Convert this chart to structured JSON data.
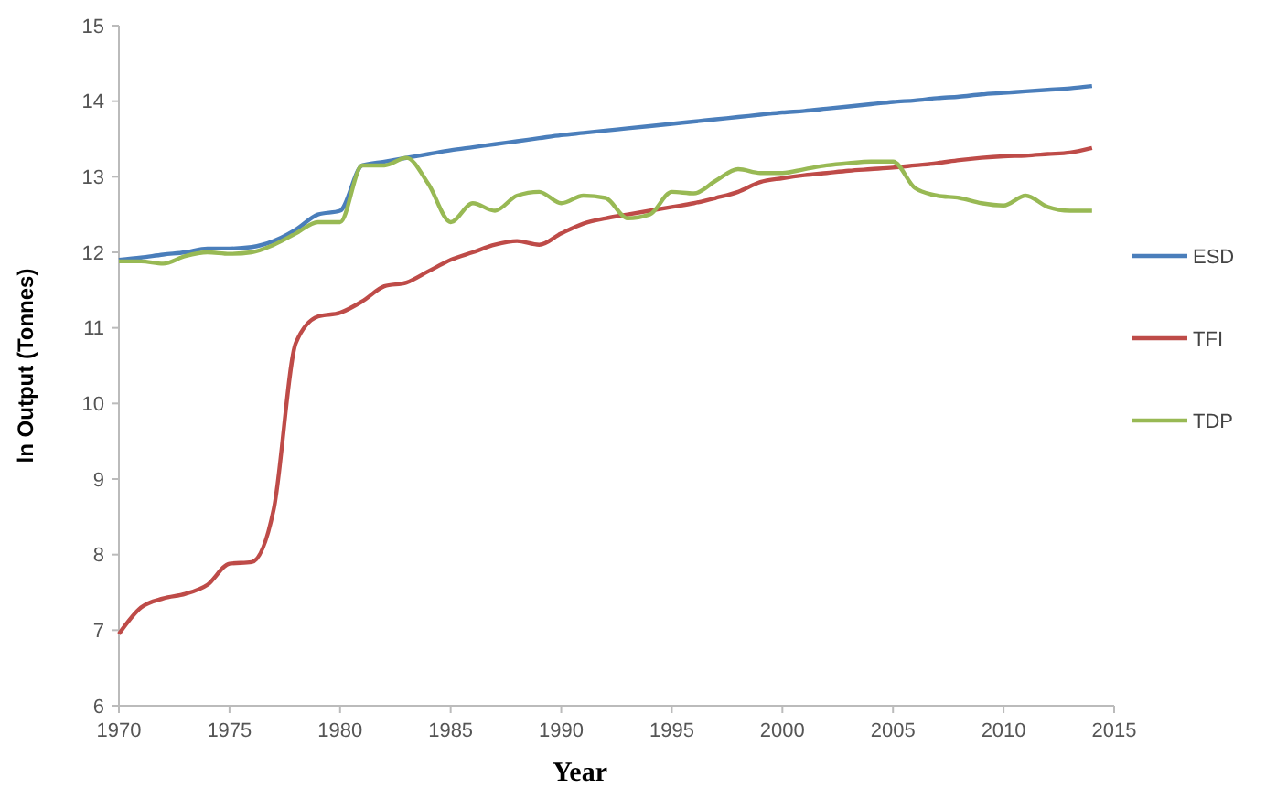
{
  "chart_data": {
    "type": "line",
    "xlabel": "Year",
    "ylabel": "ln Output (Tonnes)",
    "x": [
      1970,
      1971,
      1972,
      1973,
      1974,
      1975,
      1976,
      1977,
      1978,
      1979,
      1980,
      1981,
      1982,
      1983,
      1984,
      1985,
      1986,
      1987,
      1988,
      1989,
      1990,
      1991,
      1992,
      1993,
      1994,
      1995,
      1996,
      1997,
      1998,
      1999,
      2000,
      2001,
      2002,
      2003,
      2004,
      2005,
      2006,
      2007,
      2008,
      2009,
      2010,
      2011,
      2012,
      2013,
      2014
    ],
    "series": [
      {
        "name": "ESD",
        "color": "#4a7ebb",
        "values": [
          11.9,
          11.93,
          11.97,
          12.0,
          12.05,
          12.05,
          12.07,
          12.15,
          12.3,
          12.5,
          12.55,
          13.15,
          13.2,
          13.25,
          13.3,
          13.35,
          13.39,
          13.43,
          13.47,
          13.51,
          13.55,
          13.58,
          13.61,
          13.64,
          13.67,
          13.7,
          13.73,
          13.76,
          13.79,
          13.82,
          13.85,
          13.87,
          13.9,
          13.93,
          13.96,
          13.99,
          14.01,
          14.04,
          14.06,
          14.09,
          14.11,
          14.13,
          14.15,
          14.17,
          14.2
        ]
      },
      {
        "name": "TFI",
        "color": "#be4b48",
        "values": [
          6.95,
          7.3,
          7.42,
          7.48,
          7.6,
          7.88,
          7.9,
          8.6,
          10.8,
          11.15,
          11.2,
          11.35,
          11.55,
          11.6,
          11.75,
          11.9,
          12.0,
          12.1,
          12.15,
          12.1,
          12.25,
          12.38,
          12.45,
          12.5,
          12.55,
          12.6,
          12.65,
          12.72,
          12.8,
          12.93,
          12.98,
          13.02,
          13.05,
          13.08,
          13.1,
          13.12,
          13.15,
          13.18,
          13.22,
          13.25,
          13.27,
          13.28,
          13.3,
          13.32,
          13.38
        ]
      },
      {
        "name": "TDP",
        "color": "#98b954",
        "values": [
          11.88,
          11.88,
          11.85,
          11.95,
          12.0,
          11.98,
          12.0,
          12.1,
          12.25,
          12.4,
          12.4,
          13.15,
          13.15,
          13.25,
          12.9,
          12.4,
          12.65,
          12.55,
          12.75,
          12.8,
          12.65,
          12.75,
          12.72,
          12.45,
          12.5,
          12.8,
          12.78,
          12.95,
          13.1,
          13.05,
          13.05,
          13.1,
          13.15,
          13.18,
          13.2,
          13.2,
          12.85,
          12.75,
          12.72,
          12.65,
          12.62,
          12.75,
          12.6,
          12.55,
          12.55
        ]
      }
    ],
    "xlim": [
      1970,
      2015
    ],
    "xticks": [
      1970,
      1975,
      1980,
      1985,
      1990,
      1995,
      2000,
      2005,
      2010,
      2015
    ],
    "ylim": [
      6,
      15
    ],
    "yticks": [
      6,
      7,
      8,
      9,
      10,
      11,
      12,
      13,
      14,
      15
    ],
    "legend": "right",
    "grid": false,
    "marker": "none",
    "line_style": "solid"
  }
}
